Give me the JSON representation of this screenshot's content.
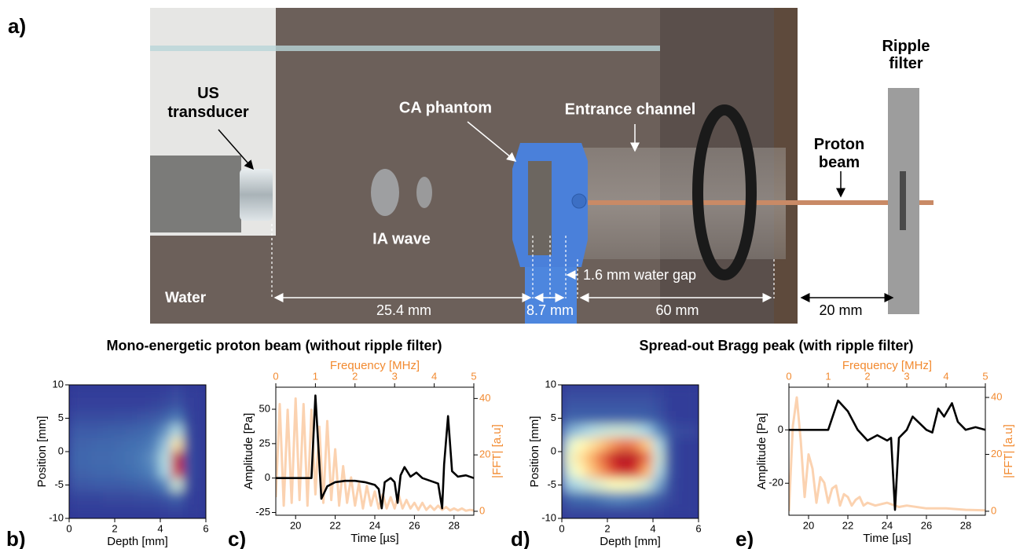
{
  "figure": {
    "panel_labels": [
      "a)",
      "b)",
      "c)",
      "d)",
      "e)"
    ],
    "section_titles": [
      "Mono-energetic proton beam (without ripple filter)",
      "Spread-out Bragg peak (with ripple filter)"
    ],
    "scene_labels": {
      "us_transducer": [
        "US",
        "transducer"
      ],
      "ca_phantom": "CA phantom",
      "entrance_channel": "Entrance channel",
      "proton_beam": [
        "Proton",
        "beam"
      ],
      "ripple_filter": [
        "Ripple",
        "filter"
      ],
      "ia_wave": "IA wave",
      "water": "Water",
      "water_gap": "1.6 mm water gap",
      "dim_1": "25.4 mm",
      "dim_2": "8.7 mm",
      "dim_3": "60 mm",
      "dim_4": "20 mm"
    }
  },
  "chart_data": [
    {
      "type": "heatmap",
      "xlabel": "Depth [mm]",
      "ylabel": "Position [mm]",
      "xlim": [
        0,
        6
      ],
      "xticks": [
        0,
        2,
        4,
        6
      ],
      "ylim": [
        -10,
        10
      ],
      "yticks": [
        -10,
        -5,
        0,
        5,
        10
      ],
      "colormap": [
        "#313695",
        "#4575b4",
        "#abd9e9",
        "#ffffbf",
        "#fdae61",
        "#d73027",
        "#a50026"
      ],
      "x": [
        0.25,
        0.75,
        1.25,
        1.75,
        2.25,
        2.75,
        3.25,
        3.75,
        4.25,
        4.75,
        5.25,
        5.75
      ],
      "y": [
        9,
        7,
        5,
        3,
        1,
        -1,
        -3,
        -5,
        -7,
        -9
      ],
      "z": [
        [
          0.02,
          0.02,
          0.02,
          0.02,
          0.02,
          0.02,
          0.02,
          0.02,
          0.03,
          0.05,
          0.02,
          0.02
        ],
        [
          0.03,
          0.03,
          0.03,
          0.03,
          0.03,
          0.03,
          0.03,
          0.04,
          0.05,
          0.08,
          0.03,
          0.02
        ],
        [
          0.06,
          0.06,
          0.06,
          0.06,
          0.07,
          0.07,
          0.08,
          0.09,
          0.12,
          0.18,
          0.04,
          0.02
        ],
        [
          0.1,
          0.1,
          0.1,
          0.11,
          0.11,
          0.12,
          0.13,
          0.15,
          0.22,
          0.35,
          0.05,
          0.02
        ],
        [
          0.12,
          0.12,
          0.13,
          0.13,
          0.14,
          0.15,
          0.16,
          0.19,
          0.3,
          0.55,
          0.06,
          0.02
        ],
        [
          0.13,
          0.13,
          0.14,
          0.14,
          0.15,
          0.16,
          0.18,
          0.22,
          0.36,
          0.9,
          0.07,
          0.02
        ],
        [
          0.12,
          0.12,
          0.13,
          0.13,
          0.14,
          0.15,
          0.17,
          0.2,
          0.34,
          0.85,
          0.07,
          0.02
        ],
        [
          0.09,
          0.09,
          0.1,
          0.1,
          0.1,
          0.11,
          0.12,
          0.14,
          0.2,
          0.4,
          0.05,
          0.02
        ],
        [
          0.04,
          0.04,
          0.04,
          0.05,
          0.05,
          0.05,
          0.06,
          0.06,
          0.08,
          0.12,
          0.03,
          0.02
        ],
        [
          0.02,
          0.02,
          0.02,
          0.02,
          0.02,
          0.02,
          0.02,
          0.02,
          0.03,
          0.04,
          0.02,
          0.02
        ]
      ]
    },
    {
      "type": "line",
      "xlabel": "Time [µs]",
      "ylabel": "Amplitude [Pa]",
      "x2label": "Frequency [MHz]",
      "y2label": "|FFT| [a.u]",
      "accent_color": "#f28a30",
      "xlim": [
        19,
        29
      ],
      "xticks": [
        20,
        22,
        24,
        26,
        28
      ],
      "ylim": [
        -27,
        66
      ],
      "yticks": [
        -25,
        0,
        25,
        50
      ],
      "x2lim": [
        0,
        5
      ],
      "x2ticks": [
        0,
        1,
        2,
        3,
        4,
        5
      ],
      "y2lim": [
        -1.4,
        44
      ],
      "y2ticks": [
        0,
        20,
        40
      ],
      "series": [
        {
          "color": "#fbd2b0",
          "axis": "y2",
          "xaxis": "x2",
          "x": [
            0,
            0.1,
            0.2,
            0.3,
            0.4,
            0.5,
            0.6,
            0.7,
            0.8,
            0.9,
            1.0,
            1.1,
            1.2,
            1.3,
            1.4,
            1.5,
            1.6,
            1.7,
            1.8,
            1.9,
            2.0,
            2.1,
            2.2,
            2.3,
            2.4,
            2.5,
            2.6,
            2.7,
            2.8,
            2.9,
            3.0,
            3.1,
            3.2,
            3.3,
            3.4,
            3.5,
            3.6,
            3.7,
            3.8,
            3.9,
            4.0,
            4.1,
            4.2,
            4.3,
            4.4,
            4.5,
            4.6,
            4.7,
            4.8,
            4.9,
            5.0
          ],
          "values": [
            5,
            38,
            2,
            36,
            3,
            40,
            4,
            38,
            2,
            36,
            6,
            30,
            3,
            32,
            4,
            22,
            2,
            16,
            3,
            12,
            2,
            10,
            1,
            9,
            2,
            7,
            1,
            6,
            1,
            5,
            1,
            6,
            1,
            4,
            1,
            3,
            0.5,
            3,
            0.5,
            2,
            0.5,
            2,
            0.5,
            1.5,
            0.3,
            1,
            0.3,
            1,
            0.2,
            0.5,
            0.3
          ]
        },
        {
          "color": "#000000",
          "x": [
            19,
            20.8,
            21.0,
            21.3,
            21.6,
            22,
            22.5,
            23,
            23.5,
            24,
            24.2,
            24.35,
            24.5,
            24.8,
            25.0,
            25.15,
            25.3,
            25.5,
            25.8,
            26.1,
            26.4,
            26.8,
            27.2,
            27.4,
            27.5,
            27.7,
            27.9,
            28.2,
            28.6,
            29
          ],
          "values": [
            0,
            0,
            60,
            -15,
            -6,
            -3,
            -2,
            -2,
            -3,
            -5,
            -8,
            -22,
            -3,
            0,
            -3,
            -18,
            2,
            8,
            1,
            4,
            0,
            -2,
            -4,
            -22,
            10,
            45,
            5,
            1,
            2,
            0
          ]
        }
      ]
    },
    {
      "type": "heatmap",
      "xlabel": "Depth [mm]",
      "ylabel": "Position [mm]",
      "xlim": [
        0,
        6
      ],
      "xticks": [
        0,
        2,
        4,
        6
      ],
      "ylim": [
        -10,
        10
      ],
      "yticks": [
        -10,
        -5,
        0,
        5,
        10
      ],
      "colormap": [
        "#313695",
        "#4575b4",
        "#abd9e9",
        "#ffffbf",
        "#fdae61",
        "#d73027",
        "#a50026"
      ],
      "x": [
        0.25,
        0.75,
        1.25,
        1.75,
        2.25,
        2.75,
        3.25,
        3.75,
        4.25,
        4.75,
        5.25,
        5.75
      ],
      "y": [
        9,
        7,
        5,
        3,
        1,
        -1,
        -3,
        -5,
        -7,
        -9
      ],
      "z": [
        [
          0.05,
          0.05,
          0.05,
          0.05,
          0.05,
          0.05,
          0.05,
          0.05,
          0.04,
          0.02,
          0.02,
          0.02
        ],
        [
          0.08,
          0.08,
          0.08,
          0.08,
          0.08,
          0.08,
          0.08,
          0.08,
          0.06,
          0.02,
          0.02,
          0.02
        ],
        [
          0.12,
          0.12,
          0.12,
          0.12,
          0.12,
          0.12,
          0.12,
          0.11,
          0.08,
          0.03,
          0.02,
          0.02
        ],
        [
          0.25,
          0.3,
          0.35,
          0.38,
          0.4,
          0.4,
          0.38,
          0.32,
          0.2,
          0.08,
          0.05,
          0.05
        ],
        [
          0.4,
          0.5,
          0.55,
          0.62,
          0.7,
          0.75,
          0.72,
          0.6,
          0.35,
          0.08,
          0.02,
          0.02
        ],
        [
          0.45,
          0.55,
          0.65,
          0.75,
          0.88,
          0.95,
          0.9,
          0.75,
          0.4,
          0.08,
          0.02,
          0.02
        ],
        [
          0.4,
          0.5,
          0.6,
          0.7,
          0.8,
          0.88,
          0.82,
          0.65,
          0.35,
          0.08,
          0.02,
          0.02
        ],
        [
          0.3,
          0.35,
          0.4,
          0.45,
          0.5,
          0.5,
          0.48,
          0.4,
          0.25,
          0.06,
          0.02,
          0.02
        ],
        [
          0.12,
          0.15,
          0.15,
          0.18,
          0.2,
          0.2,
          0.18,
          0.15,
          0.1,
          0.05,
          0.02,
          0.02
        ],
        [
          0.05,
          0.05,
          0.05,
          0.05,
          0.05,
          0.05,
          0.05,
          0.05,
          0.04,
          0.02,
          0.02,
          0.02
        ]
      ]
    },
    {
      "type": "line",
      "xlabel": "Time [µs]",
      "ylabel": "Amplitude [Pa]",
      "x2label": "Frequency [MHz]",
      "y2label": "|FFT| [a.u]",
      "accent_color": "#f28a30",
      "xlim": [
        19,
        29
      ],
      "xticks": [
        20,
        22,
        24,
        26,
        28
      ],
      "ylim": [
        -32,
        16
      ],
      "yticks": [
        -20,
        0
      ],
      "x2lim": [
        0,
        5
      ],
      "x2ticks": [
        0,
        1,
        2,
        3,
        4,
        5
      ],
      "y2lim": [
        -1.4,
        43.6
      ],
      "y2ticks": [
        0,
        20,
        40
      ],
      "series": [
        {
          "color": "#fbd2b0",
          "axis": "y2",
          "xaxis": "x2",
          "x": [
            0,
            0.1,
            0.2,
            0.3,
            0.4,
            0.5,
            0.6,
            0.7,
            0.8,
            0.9,
            1.0,
            1.1,
            1.2,
            1.3,
            1.4,
            1.5,
            1.6,
            1.7,
            1.8,
            1.9,
            2.0,
            2.2,
            2.5,
            2.8,
            3.0,
            3.5,
            4.0,
            4.5,
            5.0
          ],
          "values": [
            0,
            30,
            40,
            25,
            5,
            20,
            15,
            3,
            12,
            10,
            3,
            8,
            9,
            2,
            6,
            5,
            2,
            4,
            5,
            2,
            3,
            2,
            3,
            1.5,
            2,
            1,
            1,
            0.5,
            0.3
          ]
        },
        {
          "color": "#000000",
          "x": [
            19,
            21,
            21.5,
            22,
            22.5,
            23,
            23.5,
            24,
            24.2,
            24.4,
            24.6,
            25,
            25.3,
            26,
            26.3,
            26.6,
            26.9,
            27.3,
            27.6,
            28,
            28.5,
            29
          ],
          "values": [
            0,
            0,
            11,
            7,
            0,
            -4,
            -2,
            -4,
            -3,
            -30,
            -3,
            0,
            5,
            0,
            -1,
            8,
            5,
            10,
            3,
            0,
            1,
            0
          ]
        }
      ]
    }
  ]
}
